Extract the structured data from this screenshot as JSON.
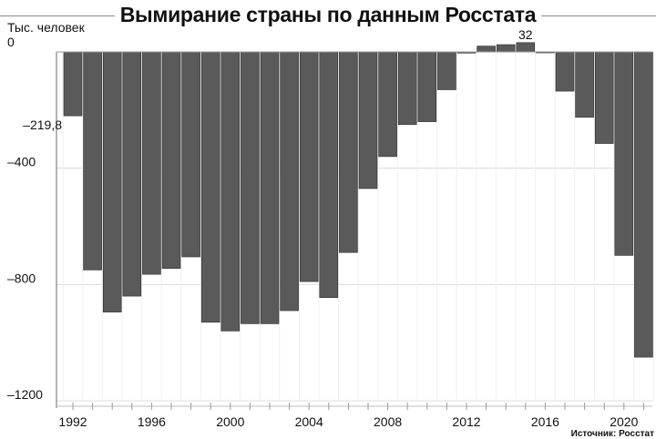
{
  "chart_data": {
    "type": "bar",
    "title": "Вымирание страны по данным Росстата",
    "ylabel": "Тыс. человек",
    "source": "Источник: Росстат",
    "categories": [
      "1992",
      "1993",
      "1994",
      "1995",
      "1996",
      "1997",
      "1998",
      "1999",
      "2000",
      "2001",
      "2002",
      "2003",
      "2004",
      "2005",
      "2006",
      "2007",
      "2008",
      "2009",
      "2010",
      "2011",
      "2012",
      "2013",
      "2014",
      "2015",
      "2016",
      "2017",
      "2018",
      "2019",
      "2020",
      "2021"
    ],
    "x_tick_labels": [
      "1992",
      "1996",
      "2000",
      "2004",
      "2008",
      "2012",
      "2016",
      "2020"
    ],
    "values": [
      -219.8,
      -750,
      -895,
      -840,
      -765,
      -745,
      -705,
      -930,
      -960,
      -935,
      -935,
      -890,
      -790,
      -845,
      -690,
      -470,
      -360,
      -250,
      -240,
      -130,
      -4,
      20,
      25,
      32,
      -2,
      -135,
      -225,
      -315,
      -700,
      -1050
    ],
    "data_labels": [
      {
        "category": "1992",
        "text": "–219,8"
      },
      {
        "category": "2015",
        "text": "32"
      }
    ],
    "y_tick_labels": [
      {
        "value": 0,
        "text": "0"
      },
      {
        "value": -400,
        "text": "–400"
      },
      {
        "value": -800,
        "text": "–800"
      },
      {
        "value": -1200,
        "text": "–1200"
      }
    ],
    "ylim": [
      -1200,
      0
    ],
    "grid": true,
    "legend": "none",
    "colors": {
      "bar": "#5a5a5a",
      "bar_edge": "#2a2a2a",
      "grid": "#dcdcdc",
      "axis": "#6a6a6a"
    }
  }
}
